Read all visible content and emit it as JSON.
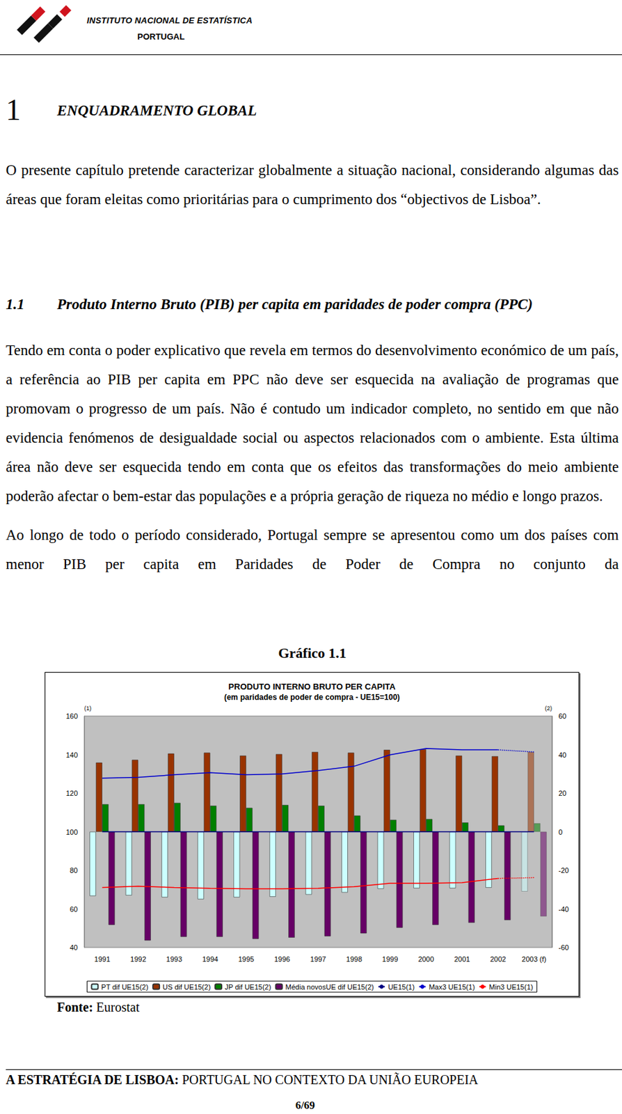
{
  "header": {
    "institution": "INSTITUTO NACIONAL DE ESTATÍSTICA",
    "country": "PORTUGAL"
  },
  "section": {
    "number": "1",
    "title": "ENQUADRAMENTO GLOBAL",
    "intro": "O presente capítulo pretende caracterizar globalmente a situação nacional, considerando algumas das áreas que foram eleitas como prioritárias para o cumprimento dos “objectivos de Lisboa”."
  },
  "subsection": {
    "number": "1.1",
    "title": "Produto Interno Bruto (PIB) per capita em paridades de poder compra (PPC)",
    "paragraphs": [
      "Tendo em conta o poder explicativo que revela em termos do desenvolvimento económico de um país, a referência ao PIB per capita em PPC não deve ser esquecida na avaliação de programas que promovam o progresso de um país. Não é contudo um indicador completo, no sentido em que não evidencia fenómenos de desigualdade social ou aspectos relacionados com o ambiente. Esta última área não deve ser esquecida tendo em conta que os efeitos das transformações do meio ambiente poderão afectar o bem-estar das populações e a própria geração de riqueza no médio e longo prazos.",
      "Ao longo de todo o período considerado, Portugal sempre se apresentou como um dos países com menor PIB per capita em Paridades de Poder de Compra no conjunto da"
    ]
  },
  "figure": {
    "caption": "Gráfico 1.1",
    "source_label": "Fonte:",
    "source": "Eurostat"
  },
  "chart_data": {
    "type": "bar",
    "title": "PRODUTO INTERNO BRUTO PER CAPITA",
    "subtitle": "(em paridades de poder de compra - UE15=100)",
    "y_label": "(1)",
    "y2_label": "(2)",
    "categories": [
      "1991",
      "1992",
      "1993",
      "1994",
      "1995",
      "1996",
      "1997",
      "1998",
      "1999",
      "2000",
      "2001",
      "2002",
      "2003 (f)"
    ],
    "ylim": [
      40,
      160
    ],
    "yticks": [
      40,
      60,
      80,
      100,
      120,
      140,
      160
    ],
    "y2lim": [
      -60,
      60
    ],
    "y2ticks": [
      -60,
      -40,
      -20,
      0,
      20,
      40,
      60
    ],
    "grid": false,
    "legend": "bottom",
    "series": [
      {
        "name": "PT dif UE15(2)",
        "type": "bar",
        "axis": "y2",
        "color": "#ccffff",
        "values": [
          -33.3,
          -33.0,
          -34.0,
          -35.0,
          -34.0,
          -33.7,
          -32.6,
          -31.5,
          -29.6,
          -29.3,
          -29.3,
          -29.0,
          -31.0
        ]
      },
      {
        "name": "US dif UE15(2)",
        "type": "bar",
        "axis": "y2",
        "color": "#993300",
        "values": [
          35.9,
          37.3,
          40.6,
          41.0,
          39.5,
          40.3,
          41.4,
          41.0,
          42.5,
          42.8,
          39.5,
          39.2,
          41.4
        ]
      },
      {
        "name": "JP dif UE15(2)",
        "type": "bar",
        "axis": "y2",
        "color": "#008000",
        "values": [
          14.3,
          14.3,
          15.0,
          13.5,
          12.4,
          13.9,
          13.5,
          8.4,
          6.2,
          6.6,
          4.8,
          3.3,
          4.4
        ]
      },
      {
        "name": "Média novosUE dif UE15(2)",
        "type": "bar",
        "axis": "y2",
        "color": "#660066",
        "values": [
          -48.3,
          -56.4,
          -54.5,
          -54.5,
          -55.6,
          -54.9,
          -54.2,
          -52.7,
          -49.8,
          -48.3,
          -47.2,
          -45.8,
          -43.9
        ]
      },
      {
        "name": "UE15(1)",
        "type": "line",
        "color": "#000080",
        "line_style": "solid",
        "values": [
          100,
          100,
          100,
          100,
          100,
          100,
          100,
          100,
          100,
          100,
          100,
          100,
          100
        ]
      },
      {
        "name": "Max3 UE15(1)",
        "type": "line",
        "color": "#0000cc",
        "line_style": "dotted_last",
        "values": [
          127.8,
          128.2,
          129.6,
          130.7,
          129.6,
          130.0,
          131.8,
          134.0,
          139.9,
          143.2,
          142.5,
          142.5,
          141.4
        ]
      },
      {
        "name": "Min3 UE15(1)",
        "type": "line",
        "color": "#ff0000",
        "line_style": "dotted_last",
        "values": [
          71.1,
          71.8,
          71.1,
          70.7,
          70.4,
          70.4,
          70.7,
          71.5,
          73.3,
          73.3,
          73.6,
          75.8,
          76.2
        ]
      }
    ]
  },
  "footer": {
    "title_bold": "A ESTRATÉGIA DE LISBOA:",
    "title_rest": "PORTUGAL NO CONTEXTO DA UNIÃO EUROPEIA",
    "page": "6/69"
  }
}
